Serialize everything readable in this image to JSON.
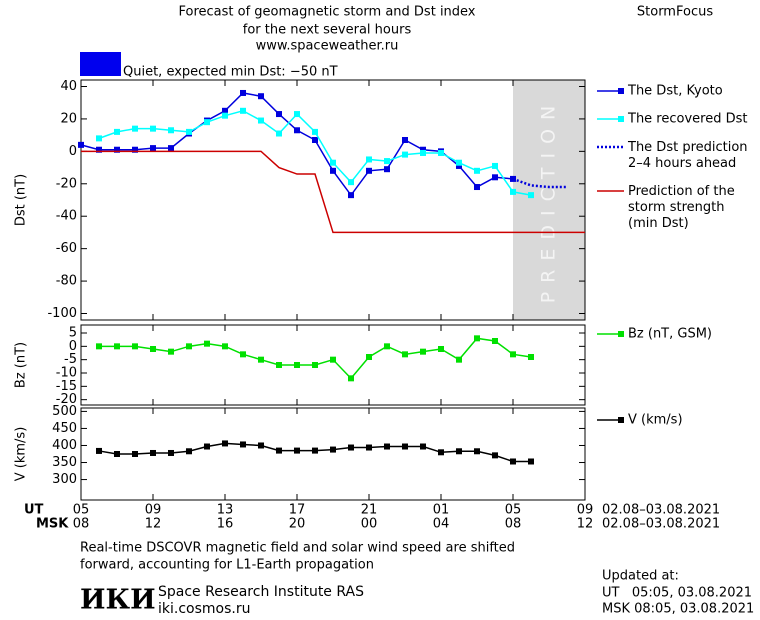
{
  "header": {
    "title": [
      "Forecast of geomagnetic storm and Dst index",
      "for the next several hours",
      "www.spaceweather.ru"
    ],
    "brand": "StormFocus",
    "status": "Quiet, expected min Dst: −50 nT",
    "status_color": "#0000ee"
  },
  "chart_data": [
    {
      "type": "line",
      "ylabel": "Dst (nT)",
      "xlim": [
        0,
        28
      ],
      "ylim": [
        -104,
        44
      ],
      "yticks": [
        40,
        20,
        0,
        -20,
        -40,
        -60,
        -80,
        -100
      ],
      "xticks": [
        0,
        4,
        8,
        12,
        16,
        20,
        24,
        28
      ],
      "shaded": {
        "span": [
          24,
          28
        ],
        "label": "PREDICTION"
      },
      "series": [
        {
          "name": "The Dst, Kyoto",
          "color": "#0000dd",
          "marker": "square",
          "x": [
            0,
            1,
            2,
            3,
            4,
            5,
            6,
            7,
            8,
            9,
            10,
            11,
            12,
            13,
            14,
            15,
            16,
            17,
            18,
            19,
            20,
            21,
            22,
            23,
            24
          ],
          "values": [
            4,
            1,
            1,
            1,
            2,
            2,
            11,
            19,
            25,
            36,
            34,
            23,
            13,
            7,
            -12,
            -27,
            -12,
            -11,
            7,
            1,
            0,
            -9,
            -22,
            -16,
            -17
          ]
        },
        {
          "name": "The recovered Dst",
          "color": "#00ffff",
          "marker": "square",
          "x": [
            1,
            2,
            3,
            4,
            5,
            6,
            7,
            8,
            9,
            10,
            11,
            12,
            13,
            14,
            15,
            16,
            17,
            18,
            19,
            20,
            21,
            22,
            23,
            24,
            25
          ],
          "values": [
            8,
            12,
            14,
            14,
            13,
            12,
            18,
            22,
            25,
            19,
            11,
            23,
            12,
            -7,
            -19,
            -5,
            -6,
            -2,
            -1,
            -1,
            -7,
            -12,
            -9,
            -25,
            -27
          ]
        },
        {
          "name": "The Dst prediction\n2–4 hours ahead",
          "color": "#0000dd",
          "style": "dotted",
          "x": [
            24,
            25,
            26,
            27
          ],
          "values": [
            -17,
            -21,
            -22,
            -22
          ]
        },
        {
          "name": "Prediction of the\nstorm strength\n(min Dst)",
          "color": "#cc0000",
          "x": [
            0,
            10,
            11,
            12,
            13,
            14,
            28
          ],
          "values": [
            0,
            0,
            -10,
            -14,
            -14,
            -50,
            -50
          ]
        }
      ]
    },
    {
      "type": "line",
      "ylabel": "Bz (nT)",
      "xlim": [
        0,
        28
      ],
      "ylim": [
        -22,
        8
      ],
      "yticks": [
        5,
        0,
        -5,
        -10,
        -15,
        -20
      ],
      "xticks": [
        0,
        4,
        8,
        12,
        16,
        20,
        24,
        28
      ],
      "series": [
        {
          "name": "Bz (nT, GSM)",
          "color": "#00e000",
          "marker": "square",
          "x": [
            1,
            2,
            3,
            4,
            5,
            6,
            7,
            8,
            9,
            10,
            11,
            12,
            13,
            14,
            15,
            16,
            17,
            18,
            19,
            20,
            21,
            22,
            23,
            24,
            25
          ],
          "values": [
            0,
            0,
            0,
            -1,
            -2,
            0,
            1,
            0,
            -3,
            -5,
            -7,
            -7,
            -7,
            -5,
            -12,
            -4,
            0,
            -3,
            -2,
            -1,
            -5,
            3,
            2,
            -3,
            -4
          ]
        }
      ]
    },
    {
      "type": "line",
      "ylabel": "V (km/s)",
      "xlim": [
        0,
        28
      ],
      "ylim": [
        240,
        510
      ],
      "yticks": [
        500,
        450,
        400,
        350,
        300
      ],
      "xlabel": "UT",
      "xdate": "02.08–03.08.2021",
      "xticks": [
        {
          "value": 0,
          "label": "05"
        },
        {
          "value": 4,
          "label": "09"
        },
        {
          "value": 8,
          "label": "13"
        },
        {
          "value": 12,
          "label": "17"
        },
        {
          "value": 16,
          "label": "21"
        },
        {
          "value": 20,
          "label": "01"
        },
        {
          "value": 24,
          "label": "05"
        },
        {
          "value": 28,
          "label": "09"
        }
      ],
      "x2label": "MSK",
      "x2date": "02.08–03.08.2021",
      "x2ticks": [
        {
          "value": 0,
          "label": "08"
        },
        {
          "value": 4,
          "label": "12"
        },
        {
          "value": 8,
          "label": "16"
        },
        {
          "value": 12,
          "label": "20"
        },
        {
          "value": 16,
          "label": "00"
        },
        {
          "value": 20,
          "label": "04"
        },
        {
          "value": 24,
          "label": "08"
        },
        {
          "value": 28,
          "label": "12"
        }
      ],
      "series": [
        {
          "name": "V (km/s)",
          "color": "#000000",
          "marker": "square",
          "x": [
            1,
            2,
            3,
            4,
            5,
            6,
            7,
            8,
            9,
            10,
            11,
            12,
            13,
            14,
            15,
            16,
            17,
            18,
            19,
            20,
            21,
            22,
            23,
            24,
            25
          ],
          "values": [
            384,
            375,
            375,
            378,
            378,
            383,
            397,
            406,
            403,
            400,
            385,
            385,
            385,
            388,
            394,
            394,
            397,
            397,
            397,
            380,
            383,
            383,
            371,
            353,
            353
          ]
        }
      ]
    }
  ],
  "footer": {
    "note": [
      "Real-time DSCOVR magnetic field and solar wind speed are shifted",
      "forward, accounting for L1-Earth propagation"
    ],
    "logo": "ИКИ",
    "institute": "Space Research Institute RAS",
    "site": "iki.cosmos.ru",
    "updated": [
      "Updated at:",
      "UT   05:05, 03.08.2021",
      "MSK 08:05, 03.08.2021"
    ]
  }
}
